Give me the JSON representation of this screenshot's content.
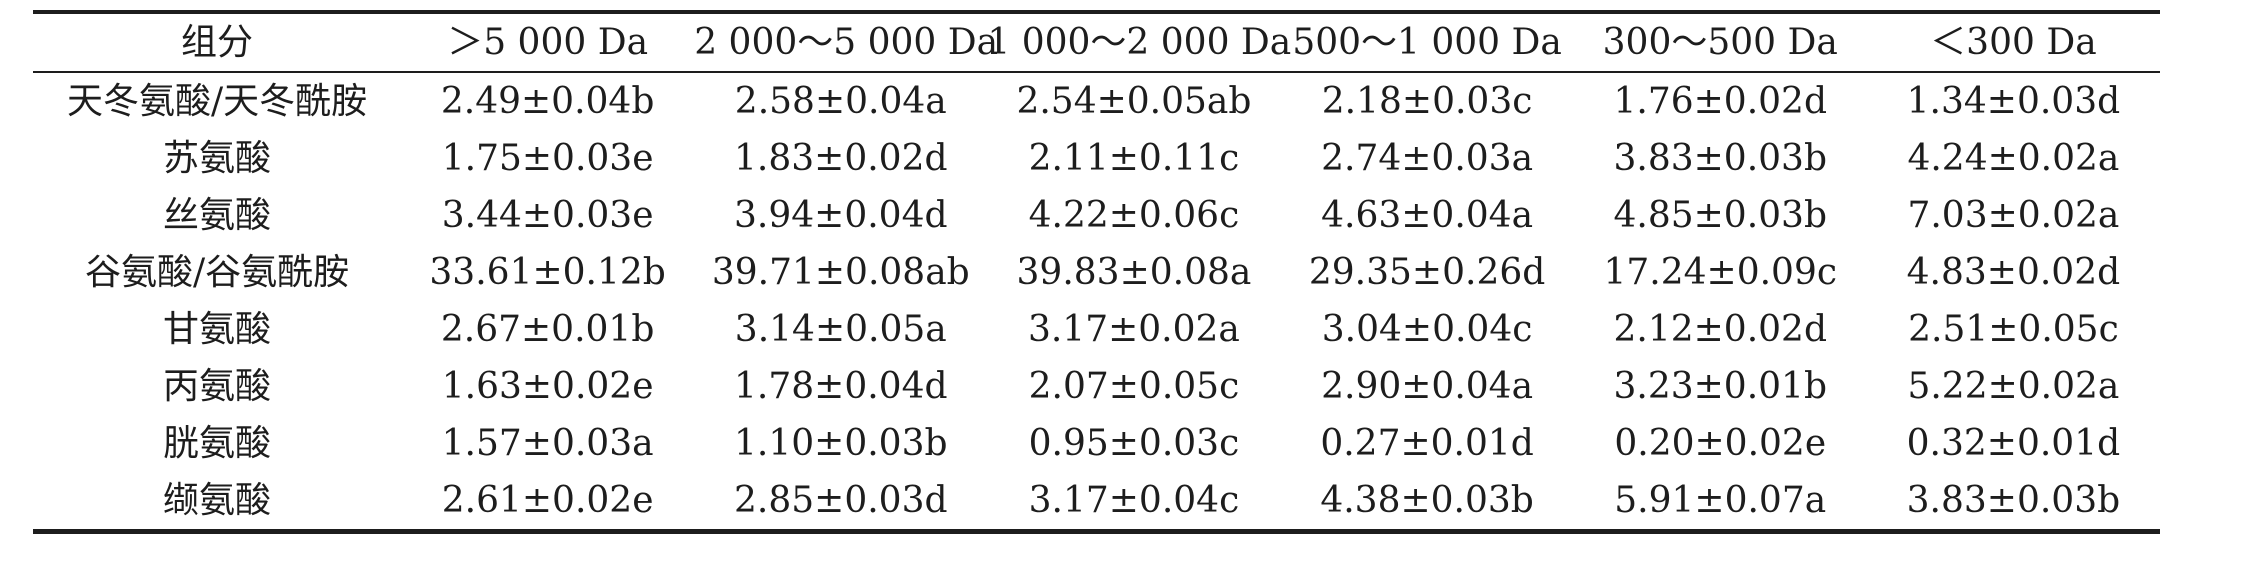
{
  "page": {
    "background_color": "#ffffff",
    "text_color": "#1d1d1d",
    "rule_color": "#1d1d1d"
  },
  "table": {
    "header": {
      "component": "组分",
      "col1": "＞5 000 Da",
      "col2": "2 000～5 000 Da",
      "col3": "1 000～2 000 Da",
      "col4": "500～1 000 Da",
      "col5": "300～500 Da",
      "col6": "＜300 Da"
    },
    "rows": [
      {
        "label": "天冬氨酸/天冬酰胺",
        "values": [
          "2.49±0.04b",
          "2.58±0.04a",
          "2.54±0.05ab",
          "2.18±0.03c",
          "1.76±0.02d",
          "1.34±0.03d"
        ]
      },
      {
        "label": "苏氨酸",
        "values": [
          "1.75±0.03e",
          "1.83±0.02d",
          "2.11±0.11c",
          "2.74±0.03a",
          "3.83±0.03b",
          "4.24±0.02a"
        ]
      },
      {
        "label": "丝氨酸",
        "values": [
          "3.44±0.03e",
          "3.94±0.04d",
          "4.22±0.06c",
          "4.63±0.04a",
          "4.85±0.03b",
          "7.03±0.02a"
        ]
      },
      {
        "label": "谷氨酸/谷氨酰胺",
        "values": [
          "33.61±0.12b",
          "39.71±0.08ab",
          "39.83±0.08a",
          "29.35±0.26d",
          "17.24±0.09c",
          "4.83±0.02d"
        ]
      },
      {
        "label": "甘氨酸",
        "values": [
          "2.67±0.01b",
          "3.14±0.05a",
          "3.17±0.02a",
          "3.04±0.04c",
          "2.12±0.02d",
          "2.51±0.05c"
        ]
      },
      {
        "label": "丙氨酸",
        "values": [
          "1.63±0.02e",
          "1.78±0.04d",
          "2.07±0.05c",
          "2.90±0.04a",
          "3.23±0.01b",
          "5.22±0.02a"
        ]
      },
      {
        "label": "胱氨酸",
        "values": [
          "1.57±0.03a",
          "1.10±0.03b",
          "0.95±0.03c",
          "0.27±0.01d",
          "0.20±0.02e",
          "0.32±0.01d"
        ]
      },
      {
        "label": "缬氨酸",
        "values": [
          "2.61±0.02e",
          "2.85±0.03d",
          "3.17±0.04c",
          "4.38±0.03b",
          "5.91±0.07a",
          "3.83±0.03b"
        ]
      }
    ]
  },
  "chart_data": {
    "type": "table",
    "title": "",
    "columns": [
      "组分",
      "＞5 000 Da",
      "2 000～5 000 Da",
      "1 000～2 000 Da",
      "500～1 000 Da",
      "300～500 Da",
      "＜300 Da"
    ],
    "series": [
      {
        "name": "＞5 000 Da",
        "values": [
          2.49,
          1.75,
          3.44,
          33.61,
          2.67,
          1.63,
          1.57,
          2.61
        ]
      },
      {
        "name": "2 000～5 000 Da",
        "values": [
          2.58,
          1.83,
          3.94,
          39.71,
          3.14,
          1.78,
          1.1,
          2.85
        ]
      },
      {
        "name": "1 000～2 000 Da",
        "values": [
          2.54,
          2.11,
          4.22,
          39.83,
          3.17,
          2.07,
          0.95,
          3.17
        ]
      },
      {
        "name": "500～1 000 Da",
        "values": [
          2.18,
          2.74,
          4.63,
          29.35,
          3.04,
          2.9,
          0.27,
          4.38
        ]
      },
      {
        "name": "300～500 Da",
        "values": [
          1.76,
          3.83,
          4.85,
          17.24,
          2.12,
          3.23,
          0.2,
          5.91
        ]
      },
      {
        "name": "＜300 Da",
        "values": [
          1.34,
          4.24,
          7.03,
          4.83,
          2.51,
          5.22,
          0.32,
          3.83
        ]
      }
    ],
    "categories": [
      "天冬氨酸/天冬酰胺",
      "苏氨酸",
      "丝氨酸",
      "谷氨酸/谷氨酰胺",
      "甘氨酸",
      "丙氨酸",
      "胱氨酸",
      "缬氨酸"
    ]
  }
}
